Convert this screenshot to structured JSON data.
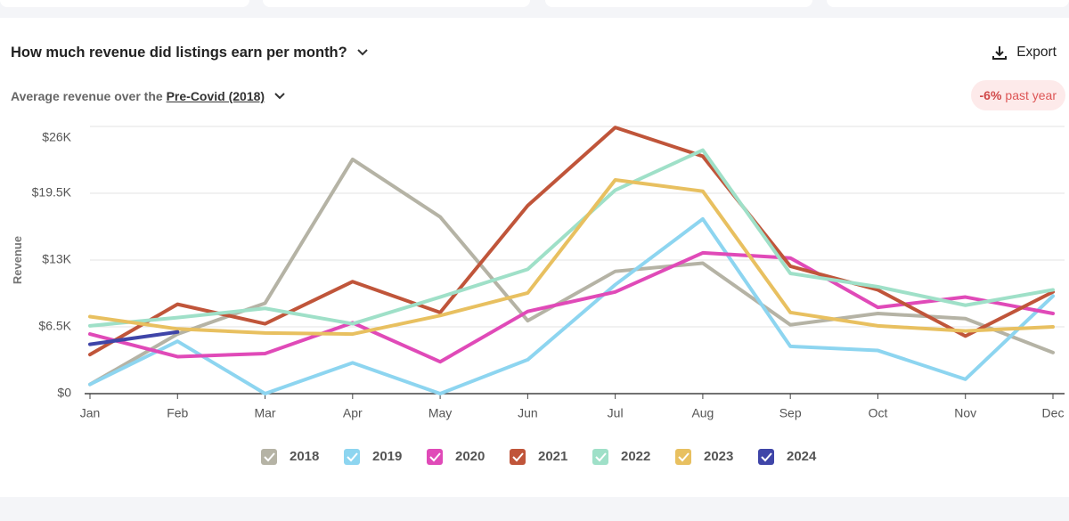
{
  "chart_data": {
    "type": "line",
    "title": "How much revenue did listings earn per month?",
    "subtitle": "Average revenue over the",
    "period": "Pre-Covid (2018)",
    "change": "-6%",
    "change_label": "past year",
    "export": "Export",
    "ylabel": "Revenue",
    "categories": [
      "Jan",
      "Feb",
      "Mar",
      "Apr",
      "May",
      "Jun",
      "Jul",
      "Aug",
      "Sep",
      "Oct",
      "Nov",
      "Dec"
    ],
    "ylim": [
      0,
      26
    ],
    "yticks": [
      {
        "value": 0,
        "label": "$0"
      },
      {
        "value": 6.5,
        "label": "$6.5K"
      },
      {
        "value": 13,
        "label": "$13K"
      },
      {
        "value": 19.5,
        "label": "$19.5K"
      },
      {
        "value": 26,
        "label": "$26K"
      }
    ],
    "grid": true,
    "series": [
      {
        "name": "2018",
        "color": "#b5b3a5",
        "values": [
          0.9,
          5.8,
          8.8,
          22.8,
          17.2,
          7.1,
          11.9,
          12.7,
          6.7,
          7.8,
          7.3,
          4.0
        ]
      },
      {
        "name": "2019",
        "color": "#8dd5f0",
        "values": [
          0.9,
          5.1,
          0,
          3.0,
          0,
          3.3,
          10.6,
          17.0,
          4.6,
          4.2,
          1.4,
          9.5
        ]
      },
      {
        "name": "2020",
        "color": "#e04ab8",
        "values": [
          5.8,
          3.6,
          3.9,
          6.9,
          3.1,
          8.0,
          9.9,
          13.7,
          13.2,
          8.4,
          9.4,
          7.8
        ]
      },
      {
        "name": "2021",
        "color": "#c0553a",
        "values": [
          3.8,
          8.7,
          6.8,
          10.9,
          7.9,
          18.3,
          25.9,
          23.1,
          12.4,
          10.1,
          5.6,
          9.9
        ]
      },
      {
        "name": "2022",
        "color": "#9fe0c8",
        "values": [
          6.6,
          7.4,
          8.3,
          6.8,
          9.4,
          12.1,
          19.8,
          23.7,
          11.7,
          10.4,
          8.6,
          10.1
        ]
      },
      {
        "name": "2023",
        "color": "#e8c060",
        "values": [
          7.5,
          6.3,
          5.9,
          5.8,
          7.6,
          9.8,
          20.8,
          19.7,
          7.9,
          6.6,
          6.1,
          6.5
        ]
      },
      {
        "name": "2024",
        "color": "#3f45a8",
        "values": [
          4.8,
          6.0,
          null,
          null,
          null,
          null,
          null,
          null,
          null,
          null,
          null,
          null
        ]
      }
    ]
  }
}
